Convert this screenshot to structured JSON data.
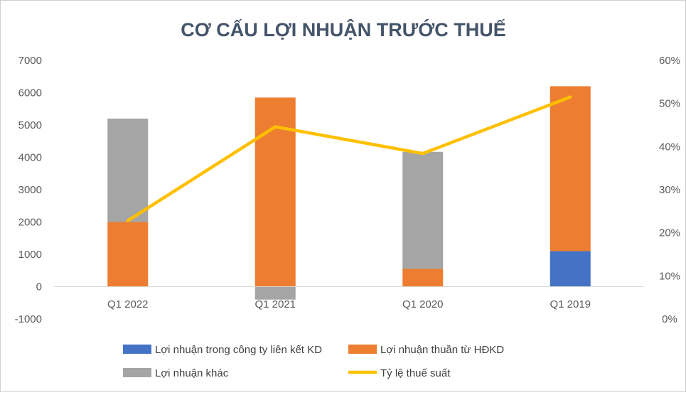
{
  "chart_data": {
    "type": "bar",
    "stacked": true,
    "title": "CƠ CẤU LỢI NHUẬN TRƯỚC THUẾ",
    "categories": [
      "Q1 2022",
      "Q1 2021",
      "Q1 2020",
      "Q1 2019"
    ],
    "series": [
      {
        "name": "Lợi nhuận trong công ty liên kết KD",
        "type": "bar",
        "axis": "left",
        "color": "#4472c4",
        "values": [
          0,
          0,
          0,
          1100
        ]
      },
      {
        "name": "Lợi nhuận thuần từ HĐKD",
        "type": "bar",
        "axis": "left",
        "color": "#ed7d31",
        "values": [
          2000,
          5850,
          550,
          5100
        ]
      },
      {
        "name": "Lợi nhuận khác",
        "type": "bar",
        "axis": "left",
        "color": "#a5a5a5",
        "values": [
          3200,
          -400,
          3620,
          0
        ]
      },
      {
        "name": "Tỷ lệ thuế suất",
        "type": "line",
        "axis": "right",
        "color": "#ffc000",
        "values": [
          0.228,
          0.446,
          0.384,
          0.515
        ]
      }
    ],
    "y_left": {
      "min": -1000,
      "max": 7000,
      "ticks": [
        "-1000",
        "0",
        "1000",
        "2000",
        "3000",
        "4000",
        "5000",
        "6000",
        "7000"
      ]
    },
    "y_right": {
      "min": 0,
      "max": 0.6,
      "ticks": [
        "0%",
        "10%",
        "20%",
        "30%",
        "40%",
        "50%",
        "60%"
      ]
    },
    "grid": false,
    "legend_position": "bottom"
  }
}
